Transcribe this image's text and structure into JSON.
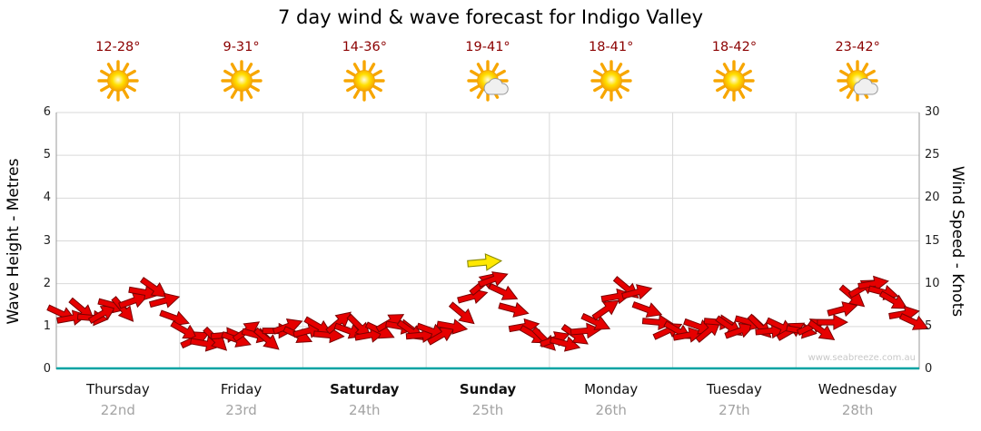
{
  "title": "7 day wind & wave forecast for Indigo Valley",
  "watermark": "www.seabreeze.com.au",
  "colors": {
    "arrow": "#e60000",
    "arrow_outline": "#7a0000",
    "axis_bottom": "#00a3a3",
    "temp_text": "#8b0000",
    "highlight": "#ffe800"
  },
  "days": [
    {
      "name": "Thursday",
      "date": "22nd",
      "temp": "12-28°",
      "icon": "sun",
      "bold": false
    },
    {
      "name": "Friday",
      "date": "23rd",
      "temp": "9-31°",
      "icon": "sun",
      "bold": false
    },
    {
      "name": "Saturday",
      "date": "24th",
      "temp": "14-36°",
      "icon": "sun",
      "bold": true
    },
    {
      "name": "Sunday",
      "date": "25th",
      "temp": "19-41°",
      "icon": "sun-cloud",
      "bold": true
    },
    {
      "name": "Monday",
      "date": "26th",
      "temp": "18-41°",
      "icon": "sun",
      "bold": false
    },
    {
      "name": "Tuesday",
      "date": "27th",
      "temp": "18-42°",
      "icon": "sun",
      "bold": false
    },
    {
      "name": "Wednesday",
      "date": "28th",
      "temp": "23-42°",
      "icon": "sun-cloud",
      "bold": false
    }
  ],
  "chart_data": {
    "type": "wind-arrows",
    "title": "7 day wind & wave forecast for Indigo Valley",
    "categories": [
      "Thursday 22nd",
      "Friday 23rd",
      "Saturday 24th",
      "Sunday 25th",
      "Monday 26th",
      "Tuesday 27th",
      "Wednesday 28th"
    ],
    "left_axis": {
      "label": "Wave Height - Metres",
      "min": 0,
      "max": 6,
      "ticks": [
        0,
        1,
        2,
        3,
        4,
        5,
        6
      ]
    },
    "right_axis": {
      "label": "Wind Speed - Knots",
      "min": 0,
      "max": 30,
      "ticks": [
        0,
        5,
        10,
        15,
        20,
        25,
        30
      ]
    },
    "x_range_days": [
      0,
      7
    ],
    "grid": true,
    "arrows_x_knots_dir": [
      [
        0.042,
        6.5,
        25
      ],
      [
        0.125,
        6,
        -10
      ],
      [
        0.208,
        7,
        40
      ],
      [
        0.292,
        6,
        5
      ],
      [
        0.375,
        6.5,
        -30
      ],
      [
        0.458,
        7.5,
        15
      ],
      [
        0.542,
        7,
        50
      ],
      [
        0.625,
        8,
        -20
      ],
      [
        0.708,
        9,
        10
      ],
      [
        0.792,
        9.5,
        35
      ],
      [
        0.875,
        8,
        -15
      ],
      [
        0.958,
        6,
        20
      ],
      [
        1.042,
        4.5,
        30
      ],
      [
        1.125,
        3.5,
        -25
      ],
      [
        1.208,
        3,
        10
      ],
      [
        1.292,
        3.5,
        45
      ],
      [
        1.375,
        4,
        -5
      ],
      [
        1.458,
        3.5,
        20
      ],
      [
        1.542,
        4.5,
        -35
      ],
      [
        1.625,
        4,
        15
      ],
      [
        1.708,
        3.5,
        40
      ],
      [
        1.792,
        4.5,
        0
      ],
      [
        1.875,
        5,
        -20
      ],
      [
        1.958,
        4,
        25
      ],
      [
        2.042,
        4.5,
        -15
      ],
      [
        2.125,
        5,
        30
      ],
      [
        2.208,
        4,
        5
      ],
      [
        2.292,
        5.5,
        -40
      ],
      [
        2.375,
        4.5,
        20
      ],
      [
        2.458,
        5,
        45
      ],
      [
        2.542,
        4,
        -10
      ],
      [
        2.625,
        4.5,
        25
      ],
      [
        2.708,
        5.5,
        -30
      ],
      [
        2.792,
        5,
        10
      ],
      [
        2.875,
        4.5,
        35
      ],
      [
        2.958,
        4,
        -5
      ],
      [
        3.042,
        4.5,
        20
      ],
      [
        3.125,
        4,
        -30
      ],
      [
        3.208,
        5,
        10
      ],
      [
        3.292,
        6.5,
        40
      ],
      [
        3.375,
        8.5,
        -15
      ],
      [
        3.458,
        10,
        -40
      ],
      [
        3.542,
        10.5,
        -20
      ],
      [
        3.625,
        9,
        25
      ],
      [
        3.708,
        7,
        15
      ],
      [
        3.792,
        5,
        -10
      ],
      [
        3.875,
        4,
        30
      ],
      [
        3.958,
        3.5,
        45
      ],
      [
        4.042,
        3.5,
        -20
      ],
      [
        4.125,
        3,
        15
      ],
      [
        4.208,
        4,
        35
      ],
      [
        4.292,
        4.5,
        -5
      ],
      [
        4.375,
        5.5,
        25
      ],
      [
        4.458,
        7,
        -35
      ],
      [
        4.542,
        8.5,
        -10
      ],
      [
        4.625,
        9.5,
        40
      ],
      [
        4.708,
        9,
        -15
      ],
      [
        4.792,
        7,
        20
      ],
      [
        4.875,
        5.5,
        5
      ],
      [
        4.958,
        4.5,
        -25
      ],
      [
        5.042,
        4.5,
        30
      ],
      [
        5.125,
        4,
        -10
      ],
      [
        5.208,
        5,
        20
      ],
      [
        5.292,
        4.5,
        -40
      ],
      [
        5.375,
        5.5,
        5
      ],
      [
        5.458,
        5,
        35
      ],
      [
        5.542,
        4.5,
        -20
      ],
      [
        5.625,
        5.5,
        15
      ],
      [
        5.708,
        5,
        45
      ],
      [
        5.792,
        4.5,
        -5
      ],
      [
        5.875,
        5,
        25
      ],
      [
        5.958,
        4.5,
        -30
      ],
      [
        6.042,
        4.5,
        10
      ],
      [
        6.125,
        5,
        -25
      ],
      [
        6.208,
        4.5,
        35
      ],
      [
        6.292,
        5.5,
        0
      ],
      [
        6.375,
        7,
        -15
      ],
      [
        6.458,
        8.5,
        40
      ],
      [
        6.542,
        9.5,
        -30
      ],
      [
        6.625,
        10,
        -10
      ],
      [
        6.708,
        9,
        15
      ],
      [
        6.792,
        8,
        30
      ],
      [
        6.875,
        6.5,
        -10
      ],
      [
        6.958,
        5.5,
        25
      ]
    ],
    "highlight_arrow": {
      "x": 3.47,
      "knots": 12.5,
      "dir": -5,
      "color": "#ffe800"
    }
  }
}
